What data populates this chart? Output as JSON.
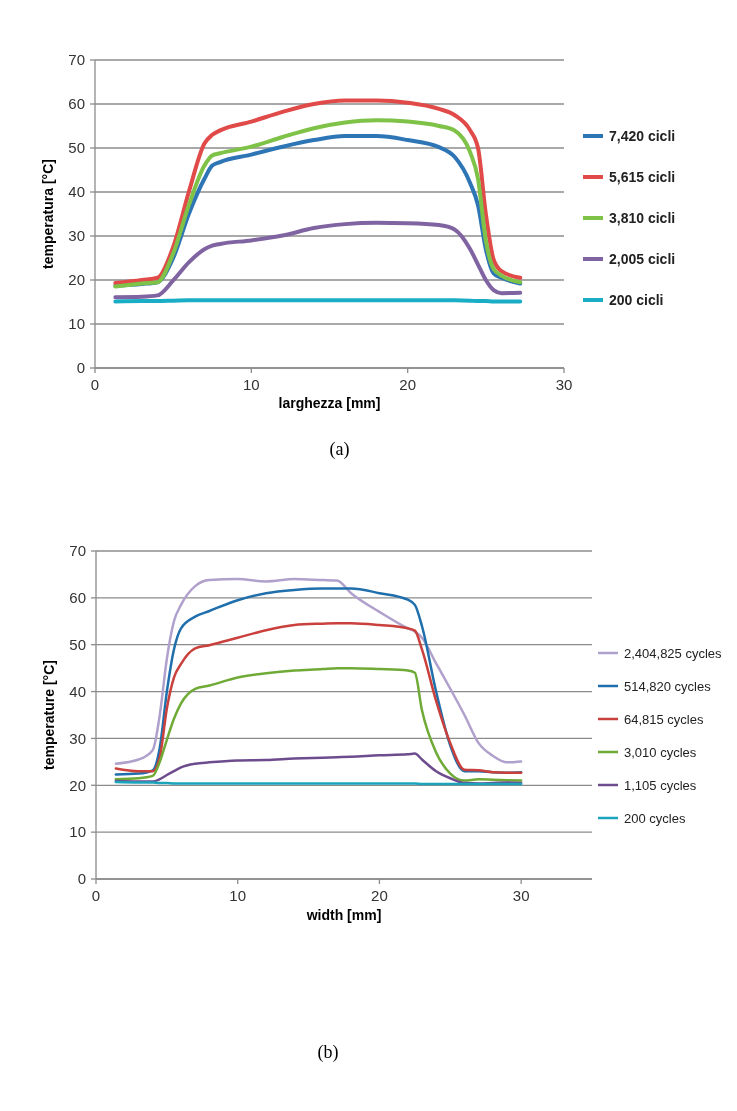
{
  "chart_data": [
    {
      "type": "line",
      "xlabel": "larghezza [mm]",
      "ylabel": "temperatura [°C]",
      "annotations": [
        "(a)"
      ],
      "xlim": [
        0,
        30
      ],
      "ylim": [
        0,
        70
      ],
      "xticks": [
        0,
        10,
        20,
        30
      ],
      "yticks": [
        0,
        10,
        20,
        30,
        40,
        50,
        60,
        70
      ],
      "grid": "y",
      "legend": "right",
      "x": [
        1.3,
        3,
        4,
        5,
        6,
        7,
        7.5,
        8,
        10,
        12,
        14,
        16,
        18,
        20,
        22,
        23,
        24,
        24.5,
        25,
        25.5,
        26,
        27.2
      ],
      "series": [
        {
          "name": "7,420 cicli",
          "color": "#2e75b6",
          "values": [
            18.7,
            19.1,
            19.5,
            25,
            35,
            43,
            46,
            46.8,
            48.5,
            50.3,
            51.8,
            52.7,
            52.7,
            51.8,
            50.2,
            48,
            42,
            37,
            27,
            21.5,
            20.5,
            19.2
          ]
        },
        {
          "name": "5,615 cicli",
          "color": "#e04a48",
          "values": [
            19.3,
            20,
            20.5,
            27.5,
            40,
            51,
            53,
            54,
            56,
            58.2,
            60,
            60.8,
            60.8,
            60.3,
            58.9,
            57.5,
            54,
            50,
            35,
            24.6,
            22,
            20.5
          ]
        },
        {
          "name": "3,810 cicli",
          "color": "#7ec247",
          "values": [
            18.5,
            19.2,
            19.5,
            26,
            37,
            46,
            48.3,
            48.8,
            50.3,
            52.5,
            54.5,
            55.8,
            56.3,
            56,
            55,
            54,
            49,
            43,
            29,
            22.5,
            21,
            19.5
          ]
        },
        {
          "name": "2,005 cicli",
          "color": "#8064a2",
          "values": [
            16.1,
            16.2,
            16.5,
            19.9,
            24,
            27,
            27.8,
            28.2,
            29,
            30.1,
            31.8,
            32.7,
            33,
            32.9,
            32.5,
            31.5,
            27,
            23.5,
            20,
            17.7,
            17,
            17.1
          ]
        },
        {
          "name": "200 cicli",
          "color": "#1aadc6",
          "values": [
            15.1,
            15.2,
            15.2,
            15.3,
            15.4,
            15.4,
            15.4,
            15.4,
            15.4,
            15.4,
            15.4,
            15.4,
            15.4,
            15.4,
            15.4,
            15.4,
            15.3,
            15.2,
            15.2,
            15.1,
            15.1,
            15.1
          ]
        }
      ]
    },
    {
      "type": "line",
      "xlabel": "width [mm]",
      "ylabel": "temperature [°C]",
      "annotations": [
        "(b)"
      ],
      "xlim": [
        0,
        35
      ],
      "ylim": [
        0,
        70
      ],
      "xticks": [
        0,
        10,
        20,
        30
      ],
      "yticks": [
        0,
        10,
        20,
        30,
        40,
        50,
        60,
        70
      ],
      "grid": "y",
      "legend": "right",
      "x": [
        1.4,
        3,
        4,
        4.5,
        5,
        5.5,
        6,
        7,
        8,
        10,
        12,
        14,
        16,
        17,
        18,
        20,
        22,
        22.5,
        23,
        24,
        25,
        26,
        27,
        28,
        29,
        30
      ],
      "series": [
        {
          "name": "2,404,825 cycles",
          "color": "#b0a0cc",
          "values": [
            24.6,
            25.5,
            27.5,
            35,
            47,
            55,
            58.5,
            62.5,
            63.8,
            64,
            63.5,
            64,
            63.8,
            63.7,
            61,
            57,
            53.5,
            52.8,
            51.5,
            46,
            40.6,
            35,
            29,
            26.3,
            24.9,
            25.1
          ]
        },
        {
          "name": "514,820 cycles",
          "color": "#1f6fad",
          "values": [
            22.3,
            22.5,
            23.2,
            28,
            40,
            49,
            53.5,
            56,
            57.2,
            59.5,
            61,
            61.7,
            62,
            62,
            62,
            61,
            59.6,
            58.5,
            54,
            40,
            28.5,
            23,
            23,
            22.8,
            22.7,
            22.8
          ]
        },
        {
          "name": "64,815 cycles",
          "color": "#c9403c",
          "values": [
            23.6,
            23,
            23,
            26,
            36.4,
            43,
            45.9,
            49.2,
            49.9,
            51.5,
            53.1,
            54.2,
            54.5,
            54.6,
            54.6,
            54.2,
            53.5,
            53,
            49,
            38,
            29,
            23.3,
            23.2,
            22.8,
            22.7,
            22.7
          ]
        },
        {
          "name": "3,010 cycles",
          "color": "#6eaa35",
          "values": [
            21.3,
            21.5,
            22,
            25,
            29.7,
            34.2,
            37.5,
            40.6,
            41.3,
            43,
            43.9,
            44.5,
            44.8,
            45,
            45,
            44.8,
            44.5,
            44,
            36,
            27,
            22.5,
            21,
            21.3,
            21.2,
            21.1,
            21
          ]
        },
        {
          "name": "1,105 cycles",
          "color": "#6d4c8e",
          "values": [
            20.9,
            20.8,
            20.8,
            21.3,
            22.2,
            23,
            23.8,
            24.6,
            24.9,
            25.3,
            25.4,
            25.7,
            25.9,
            26,
            26.1,
            26.4,
            26.6,
            26.8,
            25.5,
            23,
            21.5,
            20.5,
            20.4,
            20.5,
            20.6,
            20.5
          ]
        },
        {
          "name": "200 cycles",
          "color": "#1ba5bd",
          "values": [
            20.7,
            20.6,
            20.6,
            20.5,
            20.5,
            20.4,
            20.4,
            20.4,
            20.4,
            20.4,
            20.4,
            20.4,
            20.4,
            20.4,
            20.4,
            20.4,
            20.4,
            20.4,
            20.3,
            20.3,
            20.3,
            20.3,
            20.3,
            20.3,
            20.3,
            20.3
          ]
        }
      ]
    }
  ]
}
